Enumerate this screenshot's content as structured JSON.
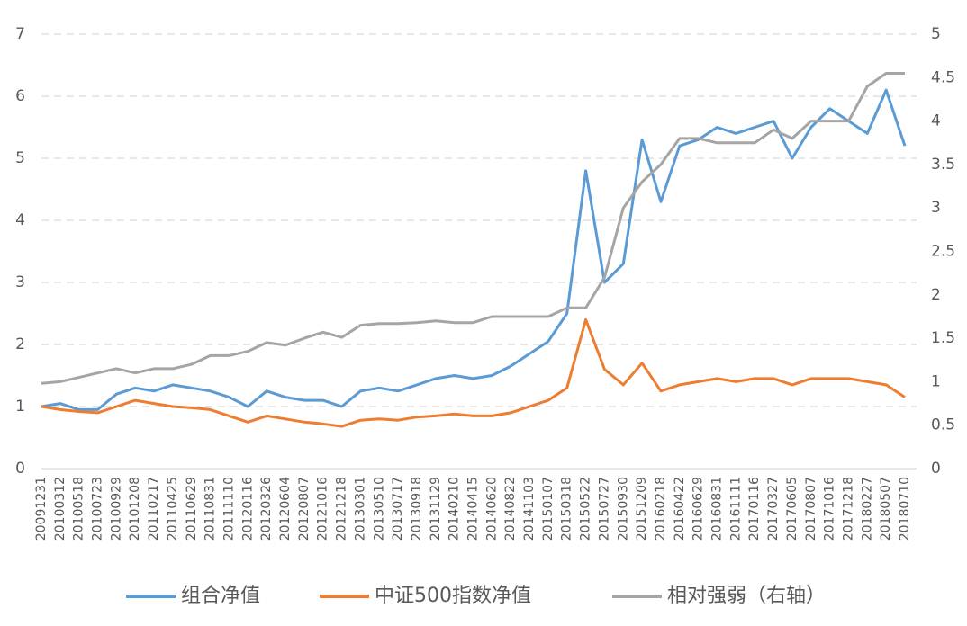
{
  "chart_data": {
    "type": "line",
    "categories": [
      "20091231",
      "20100312",
      "20100518",
      "20100723",
      "20100929",
      "20101208",
      "20110217",
      "20110425",
      "20110629",
      "20110831",
      "20111110",
      "20120116",
      "20120326",
      "20120604",
      "20120807",
      "20121016",
      "20121218",
      "20130301",
      "20130510",
      "20130717",
      "20130918",
      "20131129",
      "20140210",
      "20140415",
      "20140620",
      "20140822",
      "20141103",
      "20150107",
      "20150318",
      "20150522",
      "20150727",
      "20150930",
      "20151209",
      "20160218",
      "20160422",
      "20160629",
      "20160831",
      "20161111",
      "20170116",
      "20170327",
      "20170605",
      "20170807",
      "20171016",
      "20171218",
      "20180227",
      "20180507",
      "20180710"
    ],
    "series": [
      {
        "name": "组合净值",
        "color": "#5b9bd5",
        "values": [
          1.0,
          1.05,
          0.95,
          0.95,
          1.2,
          1.3,
          1.25,
          1.35,
          1.3,
          1.25,
          1.15,
          1.0,
          1.25,
          1.15,
          1.1,
          1.1,
          1.0,
          1.25,
          1.3,
          1.25,
          1.35,
          1.45,
          1.5,
          1.45,
          1.5,
          1.65,
          1.85,
          2.05,
          2.5,
          4.8,
          3.0,
          3.3,
          5.3,
          4.3,
          5.2,
          5.3,
          5.5,
          5.4,
          5.5,
          5.6,
          5.0,
          5.5,
          5.8,
          5.6,
          5.4,
          6.1,
          5.2
        ]
      },
      {
        "name": "中证500指数净值",
        "color": "#ed7d31",
        "values": [
          1.0,
          0.95,
          0.92,
          0.9,
          1.0,
          1.1,
          1.05,
          1.0,
          0.98,
          0.95,
          0.85,
          0.75,
          0.85,
          0.8,
          0.75,
          0.72,
          0.68,
          0.78,
          0.8,
          0.78,
          0.83,
          0.85,
          0.88,
          0.85,
          0.85,
          0.9,
          1.0,
          1.1,
          1.3,
          2.4,
          1.6,
          1.35,
          1.7,
          1.25,
          1.35,
          1.4,
          1.45,
          1.4,
          1.45,
          1.45,
          1.35,
          1.45,
          1.45,
          1.45,
          1.4,
          1.35,
          1.15
        ]
      },
      {
        "name": "相对强弱（右轴）",
        "color": "#a5a5a5",
        "axis": "y2",
        "values": [
          0.98,
          1.0,
          1.05,
          1.1,
          1.15,
          1.1,
          1.15,
          1.15,
          1.2,
          1.3,
          1.3,
          1.35,
          1.45,
          1.42,
          1.5,
          1.57,
          1.51,
          1.65,
          1.67,
          1.67,
          1.68,
          1.7,
          1.68,
          1.68,
          1.75,
          1.75,
          1.75,
          1.75,
          1.85,
          1.85,
          2.2,
          3.0,
          3.3,
          3.5,
          3.8,
          3.8,
          3.75,
          3.75,
          3.75,
          3.9,
          3.8,
          4.0,
          4.0,
          4.0,
          4.4,
          4.55,
          4.55
        ]
      }
    ],
    "ylim": [
      0,
      7
    ],
    "yticks": [
      0,
      1,
      2,
      3,
      4,
      5,
      6,
      7
    ],
    "y2lim": [
      0,
      5
    ],
    "y2ticks": [
      0,
      0.5,
      1,
      1.5,
      2,
      2.5,
      3,
      3.5,
      4,
      4.5,
      5
    ],
    "grid": true,
    "legend": "bottom"
  }
}
